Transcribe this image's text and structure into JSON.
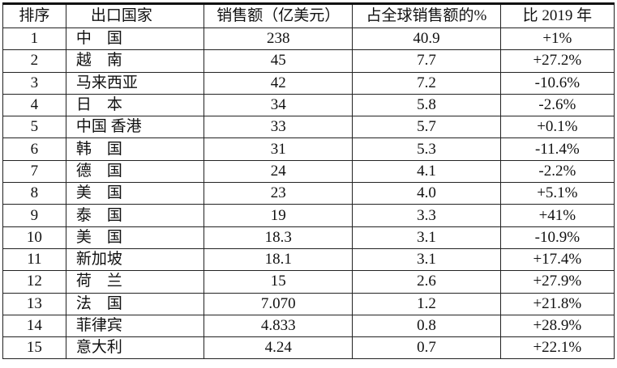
{
  "headers": [
    "排序",
    "出口国家",
    "销售额（亿美元）",
    "占全球销售额的%",
    "比 2019 年"
  ],
  "rows": [
    [
      "1",
      "中　国",
      "238",
      "40.9",
      "+1%"
    ],
    [
      "2",
      "越　南",
      "45",
      "7.7",
      "+27.2%"
    ],
    [
      "3",
      "马来西亚",
      "42",
      "7.2",
      "-10.6%"
    ],
    [
      "4",
      "日　本",
      "34",
      "5.8",
      "-2.6%"
    ],
    [
      "5",
      "中国 香港",
      "33",
      "5.7",
      "+0.1%"
    ],
    [
      "6",
      "韩　国",
      "31",
      "5.3",
      "-11.4%"
    ],
    [
      "7",
      "德　国",
      "24",
      "4.1",
      "-2.2%"
    ],
    [
      "8",
      "美　国",
      "23",
      "4.0",
      "+5.1%"
    ],
    [
      "9",
      "泰　国",
      "19",
      "3.3",
      "+41%"
    ],
    [
      "10",
      "美　国",
      "18.3",
      "3.1",
      "-10.9%"
    ],
    [
      "11",
      "新加坡",
      "18.1",
      "3.1",
      "+17.4%"
    ],
    [
      "12",
      "荷　兰",
      "15",
      "2.6",
      "+27.9%"
    ],
    [
      "13",
      "法　国",
      "7.070",
      "1.2",
      "+21.8%"
    ],
    [
      "14",
      "菲律宾",
      "4.833",
      "0.8",
      "+28.9%"
    ],
    [
      "15",
      "意大利",
      "4.24",
      "0.7",
      "+22.1%"
    ]
  ]
}
